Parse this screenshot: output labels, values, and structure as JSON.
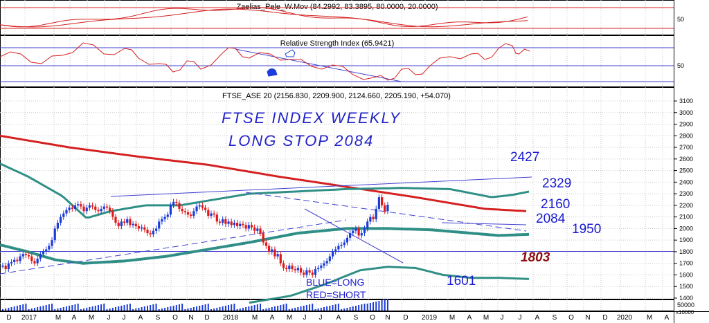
{
  "colors": {
    "up": "#1a3cd8",
    "down": "#e01818",
    "ma_long": "#d42020",
    "band": "#2f8f86",
    "ref_line": "#4040d0",
    "grid": "#c8c8c8"
  },
  "panels": {
    "zelias": {
      "title": "Zaelias_Pele_W.Mov (84.2992, 83.3895, 80.0000, 20.0000)",
      "y_tick": "50"
    },
    "rsi": {
      "title": "Relative Strength Index (65.9421)",
      "y_tick": "50"
    },
    "price": {
      "title": "FTSE_ASE 20 (2156.830, 2209.900, 2124.660, 2205.190, +54.070)"
    },
    "volume": {
      "unit_label": "x10000",
      "y_tick": "50000"
    }
  },
  "annotations": {
    "headline_1": "FTSE  INDEX WEEKLY",
    "headline_2": "LONG STOP 2084",
    "l2427": "2427",
    "l2329": "2329",
    "l2160": "2160",
    "l2084": "2084",
    "l1950": "1950",
    "l1803": "1803",
    "l1601": "1601",
    "legend_long": "BLUE=LONG",
    "legend_short": "RED=SHORT"
  },
  "chart_data": {
    "type": "candlestick",
    "y_ticks": [
      1400,
      1500,
      1600,
      1700,
      1800,
      1900,
      2000,
      2100,
      2200,
      2300,
      2400,
      2500,
      2600,
      2700,
      2800,
      2900,
      3000,
      3100
    ],
    "ylim": [
      1340,
      3140
    ],
    "x_labels": [
      "D",
      "2017",
      "M",
      "A",
      "M",
      "J",
      "J",
      "A",
      "S",
      "O",
      "N",
      "D",
      "2018",
      "M",
      "A",
      "M",
      "J",
      "J",
      "A",
      "S",
      "O",
      "N",
      "D",
      "2019",
      "M",
      "A",
      "M",
      "J",
      "J",
      "A",
      "S",
      "O",
      "N",
      "D",
      "2020",
      "M",
      "A"
    ],
    "horizontal_levels": [
      1803
    ],
    "last_bar": {
      "open": 2156.83,
      "high": 2209.9,
      "low": 2124.66,
      "close": 2205.19,
      "change": 54.07
    }
  }
}
